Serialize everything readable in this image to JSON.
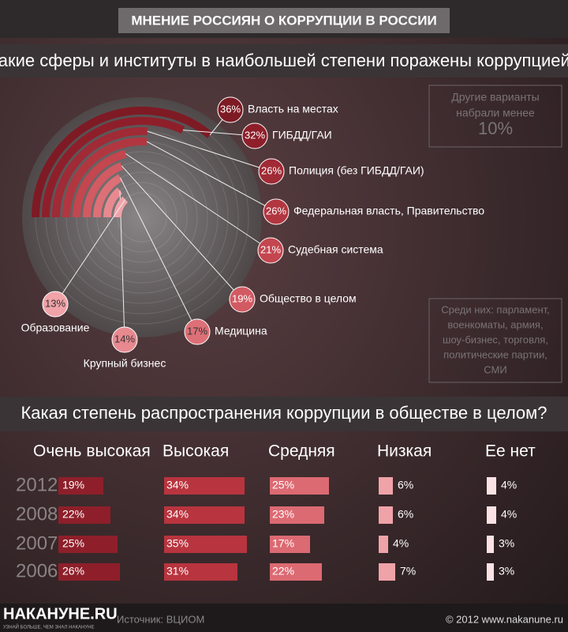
{
  "header": {
    "title": "МНЕНИЕ РОССИЯН О КОРРУПЦИИ В РОССИИ"
  },
  "chart_data": [
    {
      "type": "radial-bar",
      "title": "Какие сферы и институты  в наибольшей степени поражены коррупцией?",
      "categories": [
        "Власть на местах",
        "ГИБДД/ГАИ",
        "Полиция (без ГИБДД/ГАИ)",
        "Федеральная  власть, Правительство",
        "Судебная  система",
        "Общество в целом",
        "Медицина",
        "Крупный бизнес",
        "Образование"
      ],
      "values": [
        36,
        32,
        26,
        26,
        21,
        19,
        17,
        14,
        13
      ],
      "value_labels": [
        "36%",
        "32%",
        "26%",
        "26%",
        "21%",
        "19%",
        "17%",
        "14%",
        "13%"
      ]
    },
    {
      "type": "bar-matrix",
      "title": "Какая степень распространения коррупции в обществе в целом?",
      "categories": [
        "2012",
        "2008",
        "2007",
        "2006"
      ],
      "series": [
        {
          "name": "Очень высокая",
          "color": "#8e1f2a",
          "values": [
            19,
            22,
            25,
            26
          ],
          "value_labels": [
            "19%",
            "22%",
            "25%",
            "26%"
          ]
        },
        {
          "name": "Высокая",
          "color": "#b8343e",
          "values": [
            34,
            34,
            35,
            31
          ],
          "value_labels": [
            "34%",
            "34%",
            "35%",
            "31%"
          ]
        },
        {
          "name": "Средняя",
          "color": "#dc6a72",
          "values": [
            25,
            23,
            17,
            22
          ],
          "value_labels": [
            "25%",
            "23%",
            "17%",
            "22%"
          ]
        },
        {
          "name": "Низкая",
          "color": "#efa3a8",
          "values": [
            6,
            6,
            4,
            7
          ],
          "value_labels": [
            "6%",
            "6%",
            "4%",
            "7%"
          ]
        },
        {
          "name": "Ее нет",
          "color": "#fbe3e5",
          "values": [
            4,
            4,
            3,
            3
          ],
          "value_labels": [
            "4%",
            "4%",
            "3%",
            "3%"
          ]
        }
      ]
    }
  ],
  "notes": {
    "other": [
      "Другие варианты",
      "набрали менее",
      "10%"
    ],
    "among": [
      "Среди них: парламент,",
      "военкоматы, армия,",
      "шоу-бизнес, торговля,",
      "политические партии,",
      "СМИ"
    ]
  },
  "footer": {
    "logo": "НАКАНУНЕ.RU",
    "tagline": "УЗНАЙ БОЛЬШЕ, ЧЕМ ЗНАЛ НАКАНУНЕ",
    "source": "Источник: ВЦИОМ",
    "copyright": "© 2012 www.nakanune.ru"
  }
}
